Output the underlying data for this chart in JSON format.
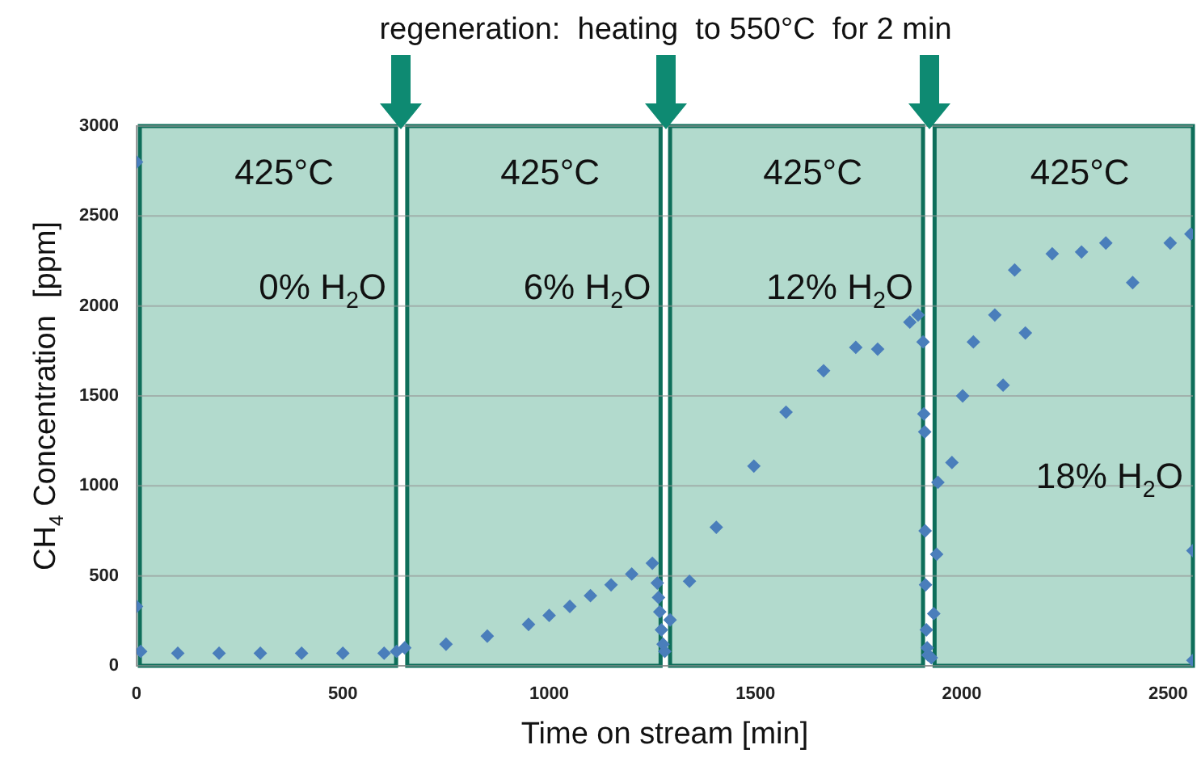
{
  "chart_data": {
    "type": "scatter",
    "xlabel": "Time on stream [min]",
    "ylabel": "CH$_{4}$ Concentration  [ppm]",
    "xlim": [
      0,
      2560
    ],
    "ylim": [
      0,
      3000
    ],
    "xticks": [
      0,
      500,
      1000,
      1500,
      2000,
      2500
    ],
    "yticks": [
      0,
      500,
      1000,
      1500,
      2000,
      2500,
      3000
    ],
    "grid": "y",
    "marker": "diamond",
    "legend": false,
    "bands": [
      {
        "axis": "x",
        "from": 8,
        "to": 629,
        "label": "425°C",
        "color": "#b2dacd"
      },
      {
        "axis": "x",
        "from": 656,
        "to": 1270,
        "label": "425°C",
        "color": "#b2dacd"
      },
      {
        "axis": "x",
        "from": 1293,
        "to": 1906,
        "label": "425°C",
        "color": "#b2dacd"
      },
      {
        "axis": "x",
        "from": 1934,
        "to": 2560,
        "label": "425°C",
        "color": "#b2dacd"
      }
    ],
    "annotations": [
      {
        "text": "regeneration:  heating  to 550°C  for 2 min",
        "x": 1282,
        "y": 3000
      },
      "0% H$_{2}$O",
      "6% H$_{2}$O",
      "12% H$_{2}$O",
      "18% H$_{2}$O"
    ],
    "series": [
      {
        "color": "#4a7ebb",
        "x": [
          0,
          0,
          10,
          100,
          200,
          300,
          400,
          500,
          600,
          630,
          650,
          750,
          850,
          950,
          1000,
          1050,
          1100,
          1150,
          1200,
          1250,
          1262,
          1265,
          1268,
          1272,
          1276,
          1280,
          1293,
          1340,
          1405,
          1496,
          1574,
          1665,
          1743,
          1796,
          1874,
          1894,
          1906,
          1908,
          1910,
          1911,
          1912,
          1914,
          1916,
          1918,
          1926,
          1932,
          1939,
          1942,
          1976,
          2002,
          2028,
          2080,
          2100,
          2128,
          2154,
          2219,
          2290,
          2349,
          2414,
          2505,
          2555,
          2560,
          2560
        ],
        "values": [
          2800,
          330,
          80,
          70,
          70,
          70,
          70,
          70,
          70,
          80,
          100,
          120,
          165,
          230,
          280,
          330,
          390,
          450,
          510,
          570,
          460,
          380,
          300,
          200,
          120,
          80,
          255,
          470,
          770,
          1110,
          1410,
          1640,
          1770,
          1760,
          1910,
          1950,
          1800,
          1400,
          1300,
          750,
          450,
          200,
          100,
          60,
          45,
          290,
          620,
          1020,
          1130,
          1500,
          1800,
          1950,
          1560,
          2200,
          1850,
          2290,
          2300,
          2350,
          2130,
          2350,
          2400,
          640,
          30
        ]
      }
    ]
  }
}
